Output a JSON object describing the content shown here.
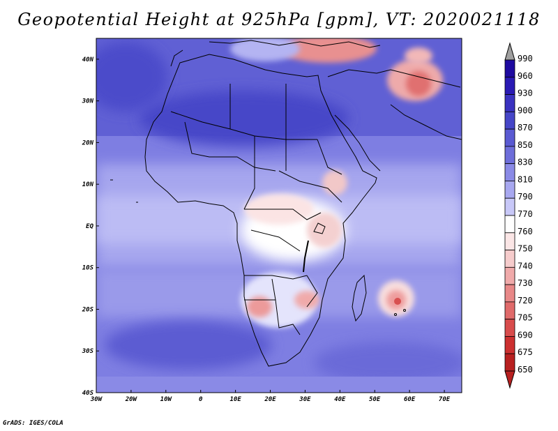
{
  "title": "Geopotential Height at 925hPa [gpm], VT: 2020021118",
  "credit": "GrADS: IGES/COLA",
  "map": {
    "region": "Africa",
    "lon_labels": [
      "30W",
      "20W",
      "10W",
      "0",
      "10E",
      "20E",
      "30E",
      "40E",
      "50E",
      "60E",
      "70E"
    ],
    "lat_labels": [
      "40N",
      "30N",
      "20N",
      "10N",
      "EQ",
      "10S",
      "20S",
      "30S",
      "40S"
    ]
  },
  "colorbar": {
    "levels": [
      "990",
      "960",
      "930",
      "900",
      "870",
      "850",
      "830",
      "810",
      "790",
      "770",
      "760",
      "750",
      "740",
      "730",
      "720",
      "705",
      "690",
      "675",
      "650"
    ],
    "colors": [
      "#a0a0a0",
      "#1e0aa0",
      "#2a1ab4",
      "#3a32c0",
      "#4646c8",
      "#5a5ad2",
      "#6e6eda",
      "#8a8ae6",
      "#a8a8f0",
      "#c8c8f8",
      "#ffffff",
      "#fbe6e6",
      "#f6cccc",
      "#f0aaaa",
      "#e88888",
      "#e06a6a",
      "#d84c4c",
      "#cc3030",
      "#b82020"
    ]
  }
}
